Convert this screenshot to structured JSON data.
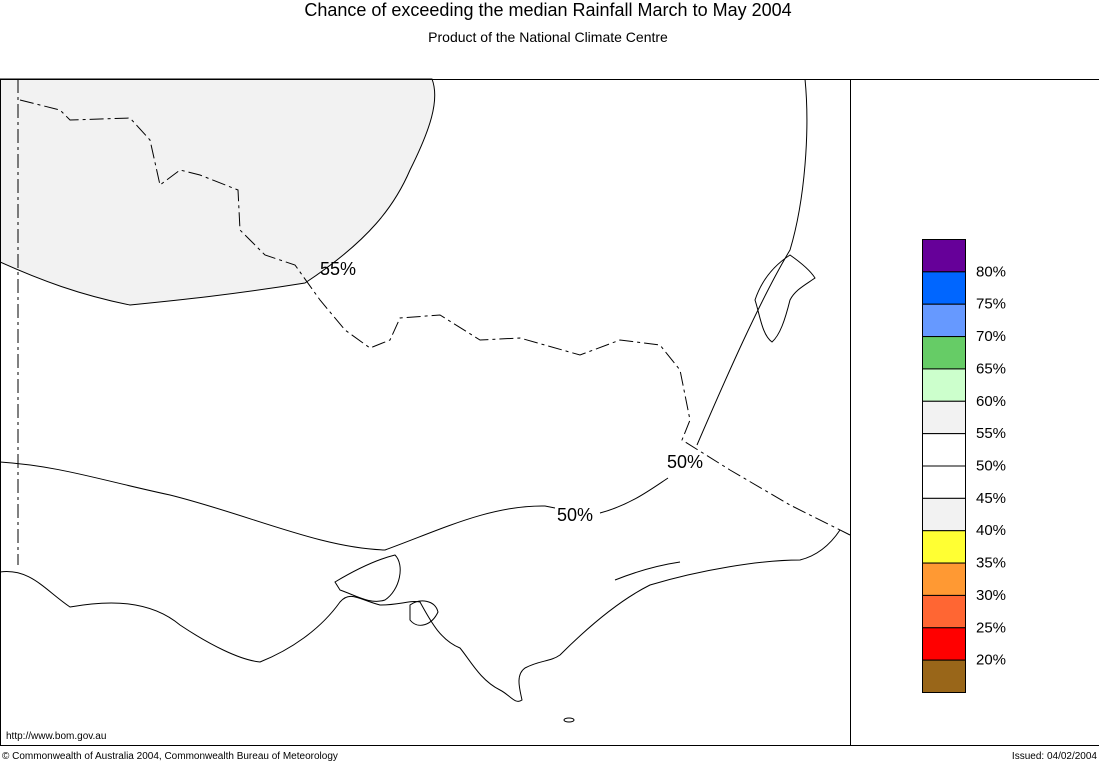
{
  "header": {
    "title": "Chance of exceeding the median Rainfall March to May 2004",
    "subtitle": "Product of the National Climate Centre"
  },
  "map": {
    "contour_labels": [
      "55%",
      "50%",
      "50%"
    ],
    "url": "http://www.bom.gov.au"
  },
  "legend": {
    "colors": [
      "#660099",
      "#0066ff",
      "#6699ff",
      "#66cc66",
      "#ccffcc",
      "#f2f2f2",
      "#ffffff",
      "#ffffff",
      "#f2f2f2",
      "#ffff33",
      "#ff9933",
      "#ff6633",
      "#ff0000",
      "#996619"
    ],
    "labels": [
      "80%",
      "75%",
      "70%",
      "65%",
      "60%",
      "55%",
      "50%",
      "45%",
      "40%",
      "35%",
      "30%",
      "25%",
      "20%"
    ]
  },
  "footer": {
    "copyright": "© Commonwealth of Australia 2004, Commonwealth Bureau of Meteorology",
    "issued": "Issued: 04/02/2004"
  }
}
